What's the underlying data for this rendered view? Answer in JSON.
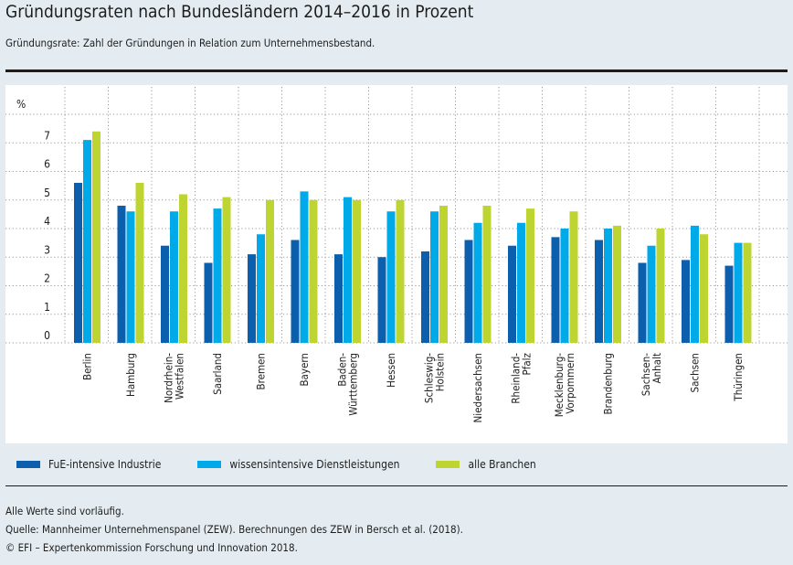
{
  "header": {
    "title": "Gründungsraten nach Bundesländern 2014–2016 in Prozent",
    "subtitle": "Gründungsrate: Zahl der Gründungen in Relation zum Unternehmensbestand."
  },
  "colors": {
    "background": "#e4ecf2",
    "panel": "#ffffff",
    "grid": "#9a9a9a"
  },
  "chart_data": {
    "type": "bar",
    "title": "Gründungsraten nach Bundesländern 2014–2016 in Prozent",
    "xlabel": "",
    "ylabel": "%",
    "ylim": [
      0,
      8
    ],
    "yticks": [
      0,
      1,
      2,
      3,
      4,
      5,
      6,
      7
    ],
    "grid": true,
    "legend_position": "bottom",
    "categories": [
      "Berlin",
      "Hamburg",
      "Nordrhein-\nWestfalen",
      "Saarland",
      "Bremen",
      "Bayern",
      "Baden-\nWürttemberg",
      "Hessen",
      "Schleswig-\nHolstein",
      "Niedersachsen",
      "Rheinland-\nPfalz",
      "Mecklenburg-\nVorpommern",
      "Brandenburg",
      "Sachsen-\nAnhalt",
      "Sachsen",
      "Thüringen"
    ],
    "series": [
      {
        "name": "FuE-intensive Industrie",
        "color": "#0b5fac",
        "values": [
          5.6,
          4.8,
          3.4,
          2.8,
          3.1,
          3.6,
          3.1,
          3.0,
          3.2,
          3.6,
          3.4,
          3.7,
          3.6,
          2.8,
          2.9,
          2.7
        ]
      },
      {
        "name": "wissensintensive Dienstleistungen",
        "color": "#00a9e7",
        "values": [
          7.1,
          4.6,
          4.6,
          4.7,
          3.8,
          5.3,
          5.1,
          4.6,
          4.6,
          4.2,
          4.2,
          4.0,
          4.0,
          3.4,
          4.1,
          3.5
        ]
      },
      {
        "name": "alle Branchen",
        "color": "#bed531",
        "values": [
          7.4,
          5.6,
          5.2,
          5.1,
          5.0,
          5.0,
          5.0,
          5.0,
          4.8,
          4.8,
          4.7,
          4.6,
          4.1,
          4.0,
          3.8,
          3.5
        ]
      }
    ]
  },
  "footer": {
    "note": "Alle Werte sind vorläufig.",
    "source": "Quelle: Mannheimer Unternehmenspanel (ZEW). Berechnungen des ZEW in Bersch et al. (2018).",
    "copyright": "© EFI – Expertenkommission Forschung und Innovation 2018."
  }
}
